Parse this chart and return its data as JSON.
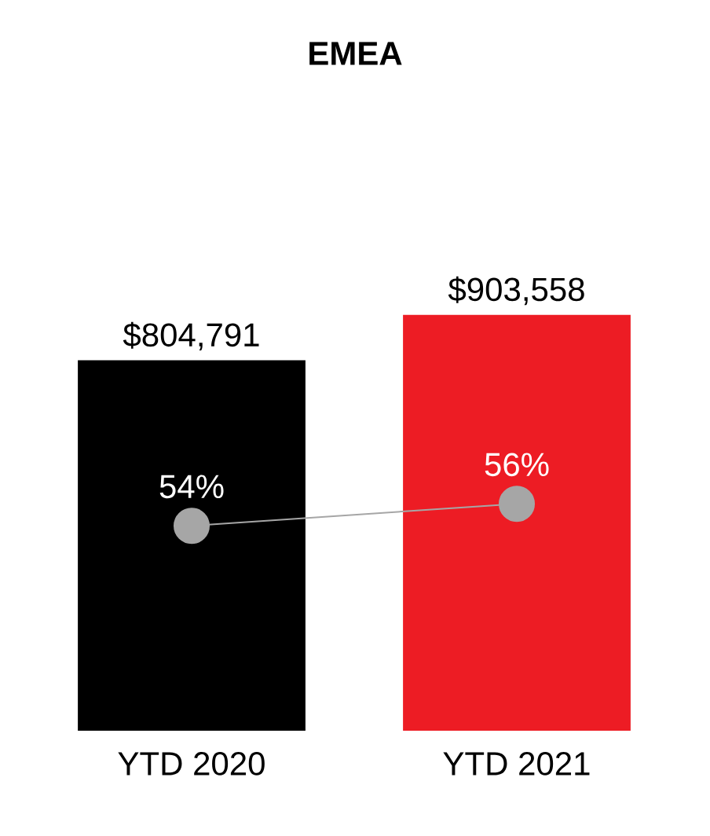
{
  "chart_data": {
    "type": "bar",
    "title": "EMEA",
    "categories": [
      "YTD 2020",
      "YTD 2021"
    ],
    "tick_labels": "x",
    "series": [
      {
        "colors": [
          "#000000",
          "#ed1c24"
        ],
        "values": [
          804791,
          903558
        ],
        "value_labels": [
          "$804,791",
          "$903,558"
        ]
      },
      {
        "type": "line",
        "axis": "y2",
        "color": "#a6a6a6",
        "marker": "circle",
        "values": [
          54,
          56
        ],
        "value_labels": [
          "54%",
          "56%"
        ]
      }
    ]
  }
}
